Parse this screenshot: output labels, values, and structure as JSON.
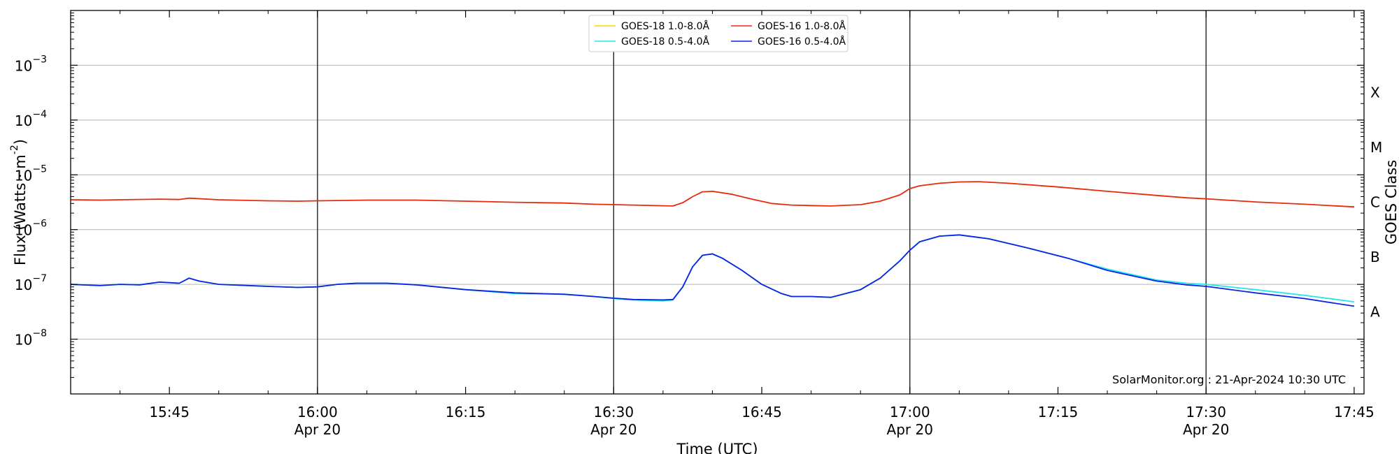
{
  "chart_data": {
    "type": "line",
    "xlabel": "Time (UTC)",
    "ylabel_main": "Flux (Watts · m",
    "ylabel_sup": "-2",
    "ylabel_close": ")",
    "y2label": "GOES Class",
    "yscale": "log",
    "ylim": [
      1e-09,
      0.01
    ],
    "xlim": [
      "15:35",
      "17:46"
    ],
    "credit": "SolarMonitor.org : 21-Apr-2024 10:30 UTC",
    "y_ticks": [
      {
        "exp": -8,
        "base": "10",
        "sup": "−8"
      },
      {
        "exp": -7,
        "base": "10",
        "sup": "−7"
      },
      {
        "exp": -6,
        "base": "10",
        "sup": "−6"
      },
      {
        "exp": -5,
        "base": "10",
        "sup": "−5"
      },
      {
        "exp": -4,
        "base": "10",
        "sup": "−4"
      },
      {
        "exp": -3,
        "base": "10",
        "sup": "−3"
      }
    ],
    "x_ticks": [
      {
        "t": "15:45",
        "time": "15:45",
        "date": ""
      },
      {
        "t": "16:00",
        "time": "16:00",
        "date": "Apr 20"
      },
      {
        "t": "16:15",
        "time": "16:15",
        "date": ""
      },
      {
        "t": "16:30",
        "time": "16:30",
        "date": "Apr 20"
      },
      {
        "t": "16:45",
        "time": "16:45",
        "date": ""
      },
      {
        "t": "17:00",
        "time": "17:00",
        "date": "Apr 20"
      },
      {
        "t": "17:15",
        "time": "17:15",
        "date": ""
      },
      {
        "t": "17:30",
        "time": "17:30",
        "date": "Apr 20"
      },
      {
        "t": "17:45",
        "time": "17:45",
        "date": ""
      }
    ],
    "vertical_lines": [
      "16:00",
      "16:30",
      "17:00",
      "17:30"
    ],
    "goes_classes": [
      {
        "label": "A",
        "exp": -7.5
      },
      {
        "label": "B",
        "exp": -6.5
      },
      {
        "label": "C",
        "exp": -5.5
      },
      {
        "label": "M",
        "exp": -4.5
      },
      {
        "label": "X",
        "exp": -3.5
      }
    ],
    "legend": {
      "placement": "top-center",
      "entries": [
        {
          "series": 0,
          "label": "GOES-18 1.0-8.0Å"
        },
        {
          "series": 2,
          "label": "GOES-18 0.5-4.0Å"
        },
        {
          "series": 1,
          "label": "GOES-16 1.0-8.0Å"
        },
        {
          "series": 3,
          "label": "GOES-16 0.5-4.0Å"
        }
      ]
    },
    "series": [
      {
        "name": "GOES-18 1.0-8.0Å",
        "color": "#ffd700",
        "x": [],
        "y": []
      },
      {
        "name": "GOES-16 1.0-8.0Å",
        "color": "#e8290b",
        "x": [
          "15:35",
          "15:38",
          "15:40",
          "15:44",
          "15:46",
          "15:47",
          "15:50",
          "15:55",
          "15:58",
          "16:00",
          "16:05",
          "16:10",
          "16:15",
          "16:20",
          "16:25",
          "16:28",
          "16:32",
          "16:36",
          "16:37",
          "16:38",
          "16:39",
          "16:40",
          "16:42",
          "16:44",
          "16:46",
          "16:48",
          "16:50",
          "16:52",
          "16:55",
          "16:57",
          "16:59",
          "17:00",
          "17:01",
          "17:03",
          "17:05",
          "17:07",
          "17:10",
          "17:15",
          "17:20",
          "17:25",
          "17:28",
          "17:30",
          "17:35",
          "17:40",
          "17:45"
        ],
        "y": [
          3.5e-06,
          3.45e-06,
          3.5e-06,
          3.6e-06,
          3.55e-06,
          3.75e-06,
          3.5e-06,
          3.35e-06,
          3.3e-06,
          3.35e-06,
          3.45e-06,
          3.45e-06,
          3.3e-06,
          3.15e-06,
          3.05e-06,
          2.9e-06,
          2.8e-06,
          2.7e-06,
          3.1e-06,
          4e-06,
          4.9e-06,
          5e-06,
          4.4e-06,
          3.6e-06,
          3e-06,
          2.8e-06,
          2.75e-06,
          2.7e-06,
          2.85e-06,
          3.3e-06,
          4.3e-06,
          5.6e-06,
          6.3e-06,
          7e-06,
          7.4e-06,
          7.5e-06,
          7e-06,
          6e-06,
          5e-06,
          4.2e-06,
          3.8e-06,
          3.65e-06,
          3.2e-06,
          2.9e-06,
          2.6e-06
        ]
      },
      {
        "name": "GOES-18 0.5-4.0Å",
        "color": "#22e6ee",
        "x": [
          "15:35",
          "15:38",
          "15:40",
          "15:42",
          "15:44",
          "15:46",
          "15:47",
          "15:48",
          "15:50",
          "15:55",
          "15:58",
          "16:00",
          "16:02",
          "16:04",
          "16:07",
          "16:10",
          "16:15",
          "16:20",
          "16:25",
          "16:28",
          "16:30",
          "16:32",
          "16:35",
          "16:36",
          "16:37",
          "16:38",
          "16:39",
          "16:40",
          "16:41",
          "16:43",
          "16:45",
          "16:47",
          "16:48",
          "16:50",
          "16:52",
          "16:55",
          "16:57",
          "16:59",
          "17:00",
          "17:01",
          "17:03",
          "17:05",
          "17:08",
          "17:12",
          "17:16",
          "17:20",
          "17:25",
          "17:28",
          "17:30",
          "17:35",
          "17:40",
          "17:45"
        ],
        "y": [
          1e-07,
          9.5e-08,
          1e-07,
          9.8e-08,
          1.1e-07,
          1.05e-07,
          1.3e-07,
          1.15e-07,
          1e-07,
          9.2e-08,
          8.8e-08,
          9e-08,
          1e-07,
          1.05e-07,
          1.05e-07,
          9.8e-08,
          8e-08,
          6.8e-08,
          6.6e-08,
          6e-08,
          5.5e-08,
          5.2e-08,
          5e-08,
          5.2e-08,
          9e-08,
          2.1e-07,
          3.4e-07,
          3.6e-07,
          3e-07,
          1.8e-07,
          1e-07,
          6.8e-08,
          6e-08,
          6e-08,
          5.8e-08,
          8e-08,
          1.3e-07,
          2.7e-07,
          4.2e-07,
          6e-07,
          7.6e-07,
          8e-07,
          6.8e-07,
          4.6e-07,
          3e-07,
          1.9e-07,
          1.2e-07,
          1.05e-07,
          1e-07,
          8e-08,
          6.3e-08,
          4.8e-08
        ]
      },
      {
        "name": "GOES-16 0.5-4.0Å",
        "color": "#0b24e3",
        "x": [
          "15:35",
          "15:38",
          "15:40",
          "15:42",
          "15:44",
          "15:46",
          "15:47",
          "15:48",
          "15:50",
          "15:55",
          "15:58",
          "16:00",
          "16:02",
          "16:04",
          "16:07",
          "16:10",
          "16:15",
          "16:20",
          "16:25",
          "16:28",
          "16:30",
          "16:32",
          "16:35",
          "16:36",
          "16:37",
          "16:38",
          "16:39",
          "16:40",
          "16:41",
          "16:43",
          "16:45",
          "16:47",
          "16:48",
          "16:50",
          "16:52",
          "16:55",
          "16:57",
          "16:59",
          "17:00",
          "17:01",
          "17:03",
          "17:05",
          "17:08",
          "17:12",
          "17:16",
          "17:20",
          "17:25",
          "17:28",
          "17:30",
          "17:35",
          "17:40",
          "17:45"
        ],
        "y": [
          1e-07,
          9.5e-08,
          1e-07,
          9.8e-08,
          1.1e-07,
          1.05e-07,
          1.3e-07,
          1.15e-07,
          1e-07,
          9.2e-08,
          8.8e-08,
          9e-08,
          1e-07,
          1.05e-07,
          1.05e-07,
          9.8e-08,
          8e-08,
          7e-08,
          6.6e-08,
          6e-08,
          5.6e-08,
          5.3e-08,
          5.2e-08,
          5.3e-08,
          9e-08,
          2.1e-07,
          3.4e-07,
          3.6e-07,
          3e-07,
          1.8e-07,
          1e-07,
          6.8e-08,
          6e-08,
          6e-08,
          5.8e-08,
          8e-08,
          1.3e-07,
          2.7e-07,
          4.2e-07,
          6e-07,
          7.6e-07,
          8e-07,
          6.8e-07,
          4.6e-07,
          3e-07,
          1.8e-07,
          1.15e-07,
          9.8e-08,
          9.2e-08,
          7e-08,
          5.5e-08,
          4e-08
        ]
      }
    ]
  }
}
